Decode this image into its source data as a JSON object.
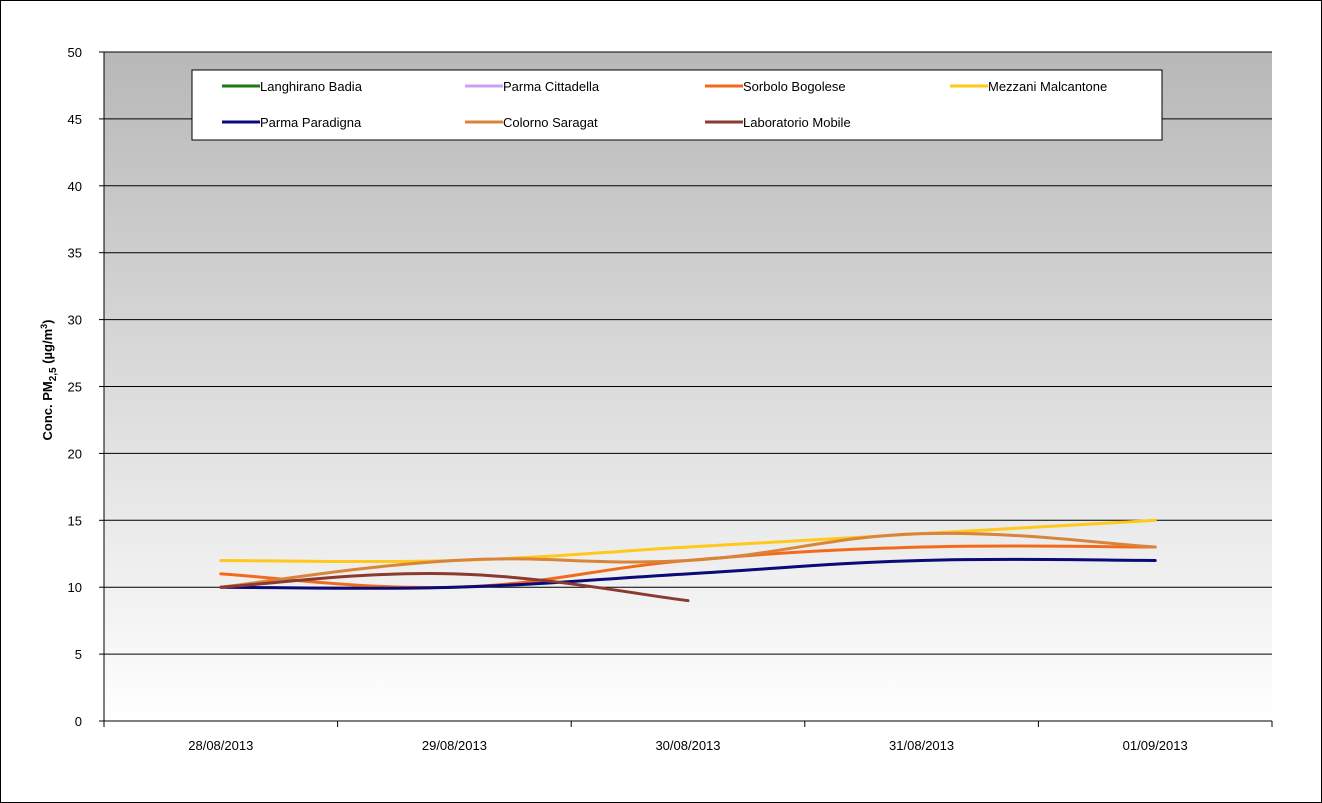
{
  "chart_data": {
    "type": "line",
    "title": "",
    "xlabel": "",
    "ylabel_main": "Conc. PM",
    "ylabel_sub": "2,5",
    "ylabel_unit_prefix": " (µg/m",
    "ylabel_unit_sup": "3",
    "ylabel_unit_suffix": ")",
    "ylim": [
      0,
      50
    ],
    "yticks": [
      0,
      5,
      10,
      15,
      20,
      25,
      30,
      35,
      40,
      45,
      50
    ],
    "categories": [
      "28/08/2013",
      "29/08/2013",
      "30/08/2013",
      "31/08/2013",
      "01/09/2013"
    ],
    "grid": true,
    "legend_position": "top",
    "series": [
      {
        "name": "Langhirano Badia",
        "color": "#1a7a1a",
        "values": [
          null,
          null,
          null,
          null,
          null
        ]
      },
      {
        "name": "Parma Cittadella",
        "color": "#c8a2f0",
        "values": [
          null,
          null,
          null,
          null,
          null
        ]
      },
      {
        "name": "Sorbolo Bogolese",
        "color": "#f26b1d",
        "values": [
          11,
          10,
          12,
          13,
          13
        ]
      },
      {
        "name": "Mezzani Malcantone",
        "color": "#ffc81a",
        "values": [
          12,
          12,
          13,
          14,
          15
        ]
      },
      {
        "name": "Parma Paradigna",
        "color": "#0a0a78",
        "values": [
          10,
          10,
          11,
          12,
          12
        ]
      },
      {
        "name": "Colorno Saragat",
        "color": "#d9843b",
        "values": [
          10,
          12,
          12,
          14,
          13
        ]
      },
      {
        "name": "Laboratorio Mobile",
        "color": "#8b3a2f",
        "values": [
          10,
          11,
          9,
          null,
          null
        ]
      }
    ]
  }
}
